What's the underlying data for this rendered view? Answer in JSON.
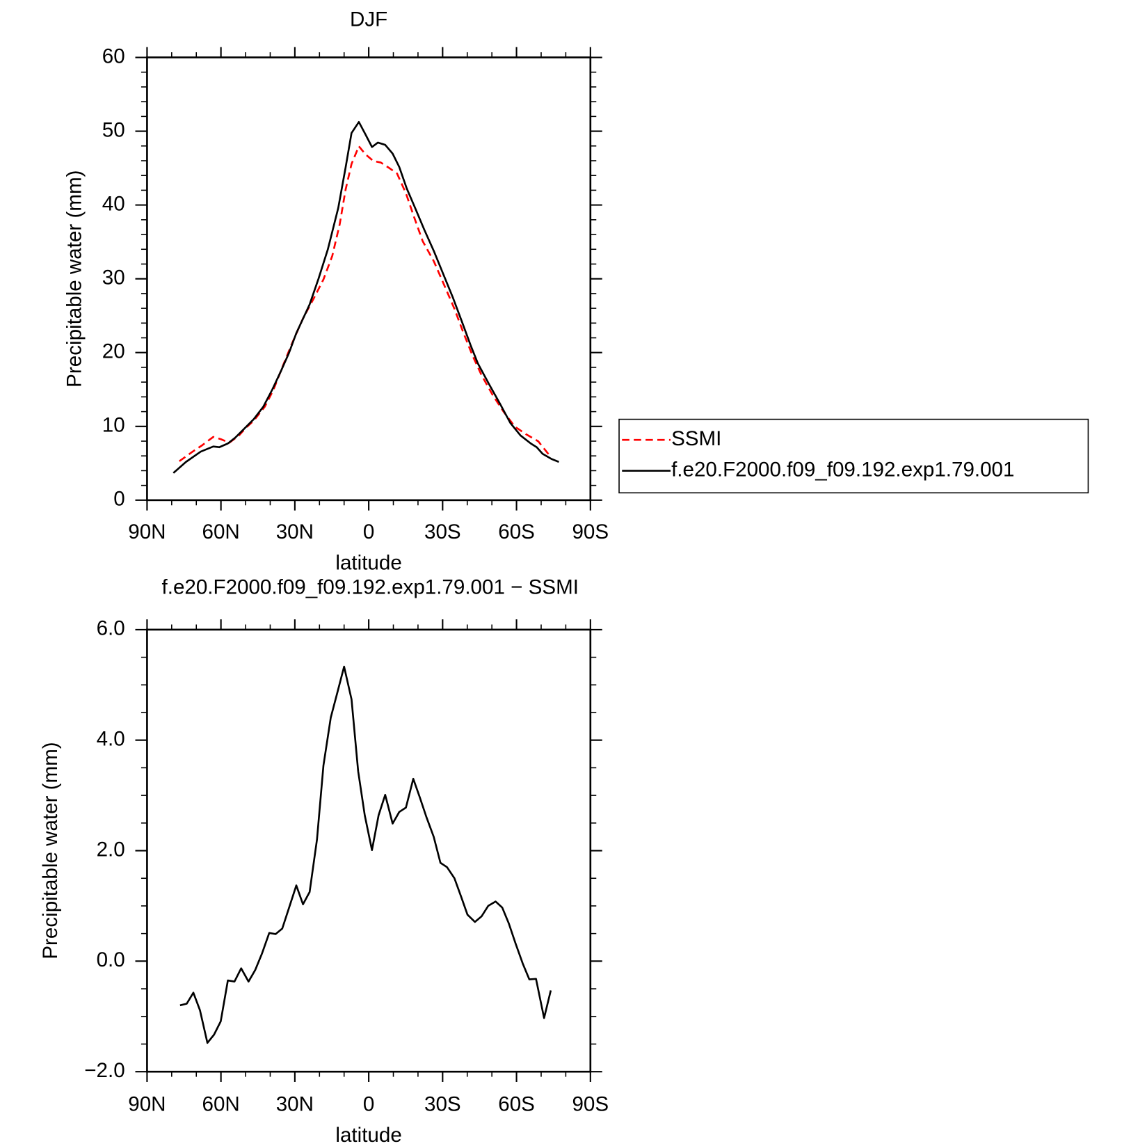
{
  "chart_data": [
    {
      "type": "line",
      "title": "DJF",
      "xlabel": "latitude",
      "ylabel": "Precipitable water (mm)",
      "xlim": [
        90,
        -90
      ],
      "ylim": [
        0,
        60
      ],
      "xticks": [
        {
          "value": 90,
          "label": "90N"
        },
        {
          "value": 60,
          "label": "60N"
        },
        {
          "value": 30,
          "label": "30N"
        },
        0,
        {
          "value": -30,
          "label": "30S"
        },
        {
          "value": -60,
          "label": "60S"
        },
        {
          "value": -90,
          "label": "90S"
        }
      ],
      "xminorticks": [
        80,
        70,
        50,
        40,
        20,
        10,
        -10,
        -20,
        -40,
        -50,
        -70,
        -80
      ],
      "yticks": [
        0,
        10,
        20,
        30,
        40,
        50,
        60
      ],
      "yminorticks": [
        2,
        4,
        6,
        8,
        12,
        14,
        16,
        18,
        22,
        24,
        26,
        28,
        32,
        34,
        36,
        38,
        42,
        44,
        46,
        48,
        52,
        54,
        56,
        58
      ],
      "legend": "outside right",
      "series": [
        {
          "name": "SSMI",
          "color": "#ff0000",
          "linestyle": "dashed",
          "x": [
            76.9,
            71.5,
            67.9,
            63.1,
            60.1,
            56.6,
            52.7,
            50.0,
            46.7,
            42.2,
            38.7,
            34.8,
            30.9,
            26.7,
            22.5,
            18.4,
            14.8,
            11.8,
            9.4,
            7.0,
            4.0,
            1.3,
            -1.9,
            -4.9,
            -8.5,
            -11.5,
            -15.1,
            -18.4,
            -21.9,
            -26.4,
            -30.3,
            -34.8,
            -38.4,
            -42.2,
            -45.8,
            -50.3,
            -54.8,
            -59.3,
            -63.7,
            -68.8,
            -73.6
          ],
          "values": [
            5.28,
            6.58,
            7.38,
            8.57,
            8.27,
            7.78,
            8.77,
            9.77,
            10.77,
            12.66,
            14.96,
            18.25,
            21.44,
            24.63,
            27.22,
            29.91,
            33.1,
            37.39,
            42.07,
            45.56,
            47.96,
            46.86,
            45.96,
            45.76,
            44.97,
            44.27,
            41.58,
            38.39,
            35.09,
            32.4,
            29.41,
            25.92,
            22.73,
            19.54,
            16.95,
            14.26,
            11.96,
            9.97,
            8.97,
            7.98,
            5.98
          ]
        },
        {
          "name": "f.e20.F2000.f09_f09.192.exp1.79.001",
          "color": "#000000",
          "linestyle": "solid",
          "x": [
            79.3,
            74.2,
            68.2,
            63.1,
            60.7,
            57.2,
            54.2,
            50.6,
            46.7,
            42.8,
            39.2,
            35.7,
            32.4,
            29.4,
            24.0,
            20.4,
            16.6,
            12.4,
            9.4,
            7.0,
            4.0,
            1.3,
            -1.3,
            -3.7,
            -6.7,
            -9.7,
            -12.4,
            -15.4,
            -19.0,
            -22.5,
            -26.4,
            -30.3,
            -34.2,
            -37.8,
            -41.3,
            -44.3,
            -48.8,
            -53.3,
            -57.5,
            -61.6,
            -65.8,
            -68.2,
            -70.6,
            -74.2,
            -77.2
          ],
          "values": [
            3.69,
            5.18,
            6.58,
            7.28,
            7.18,
            7.68,
            8.47,
            9.67,
            10.97,
            12.66,
            14.96,
            17.45,
            19.94,
            22.63,
            26.52,
            30.01,
            34.0,
            39.58,
            45.06,
            49.75,
            51.25,
            49.55,
            47.86,
            48.46,
            48.15,
            46.96,
            45.16,
            42.27,
            39.48,
            36.69,
            33.8,
            30.61,
            27.42,
            24.23,
            21.04,
            18.54,
            15.75,
            13.06,
            10.47,
            8.77,
            7.68,
            7.18,
            6.28,
            5.58,
            5.18
          ]
        }
      ]
    },
    {
      "type": "line",
      "title": "f.e20.F2000.f09_f09.192.exp1.79.001 − SSMI",
      "xlabel": "latitude",
      "ylabel": "Precipitable water (mm)",
      "xlim": [
        90,
        -90
      ],
      "ylim": [
        -2,
        6
      ],
      "xticks": [
        {
          "value": 90,
          "label": "90N"
        },
        {
          "value": 60,
          "label": "60N"
        },
        {
          "value": 30,
          "label": "30N"
        },
        0,
        {
          "value": -30,
          "label": "30S"
        },
        {
          "value": -60,
          "label": "60S"
        },
        {
          "value": -90,
          "label": "90S"
        }
      ],
      "xminorticks": [
        80,
        70,
        50,
        40,
        20,
        10,
        -10,
        -20,
        -40,
        -50,
        -70,
        -80
      ],
      "yticks": [
        {
          "value": -2,
          "label": "−2.0"
        },
        {
          "value": 0,
          "label": "0.0"
        },
        {
          "value": 2,
          "label": "2.0"
        },
        {
          "value": 4,
          "label": "4.0"
        },
        {
          "value": 6,
          "label": "6.0"
        }
      ],
      "yminorticks": [
        -1.5,
        -1,
        -0.5,
        0.5,
        1,
        1.5,
        2.5,
        3,
        3.5,
        4.5,
        5,
        5.5
      ],
      "series": [
        {
          "color": "#000000",
          "linestyle": "solid",
          "x": [
            76.6,
            73.9,
            71.2,
            68.5,
            65.5,
            62.8,
            60.1,
            57.2,
            54.5,
            51.8,
            48.8,
            46.1,
            43.4,
            40.4,
            37.8,
            35.1,
            32.4,
            29.4,
            26.7,
            24.0,
            21.0,
            18.4,
            15.4,
            12.7,
            10.0,
            7.0,
            4.3,
            1.6,
            -1.3,
            -4.0,
            -6.7,
            -9.7,
            -12.4,
            -15.1,
            -18.1,
            -20.7,
            -23.4,
            -26.4,
            -29.1,
            -31.8,
            -34.8,
            -37.5,
            -40.1,
            -43.1,
            -45.8,
            -48.5,
            -51.5,
            -54.2,
            -56.9,
            -59.6,
            -62.5,
            -65.2,
            -67.9,
            -71.2,
            -73.9
          ],
          "values": [
            -0.8,
            -0.77,
            -0.57,
            -0.89,
            -1.48,
            -1.33,
            -1.09,
            -0.35,
            -0.37,
            -0.13,
            -0.37,
            -0.16,
            0.13,
            0.51,
            0.49,
            0.59,
            0.96,
            1.37,
            1.03,
            1.25,
            2.2,
            3.54,
            4.41,
            4.87,
            5.33,
            4.74,
            3.44,
            2.64,
            2.01,
            2.64,
            3.01,
            2.49,
            2.7,
            2.78,
            3.3,
            2.97,
            2.61,
            2.25,
            1.78,
            1.7,
            1.5,
            1.17,
            0.84,
            0.71,
            0.81,
            1.0,
            1.08,
            0.97,
            0.68,
            0.32,
            -0.04,
            -0.33,
            -0.32,
            -1.03,
            -0.53
          ]
        }
      ]
    }
  ]
}
